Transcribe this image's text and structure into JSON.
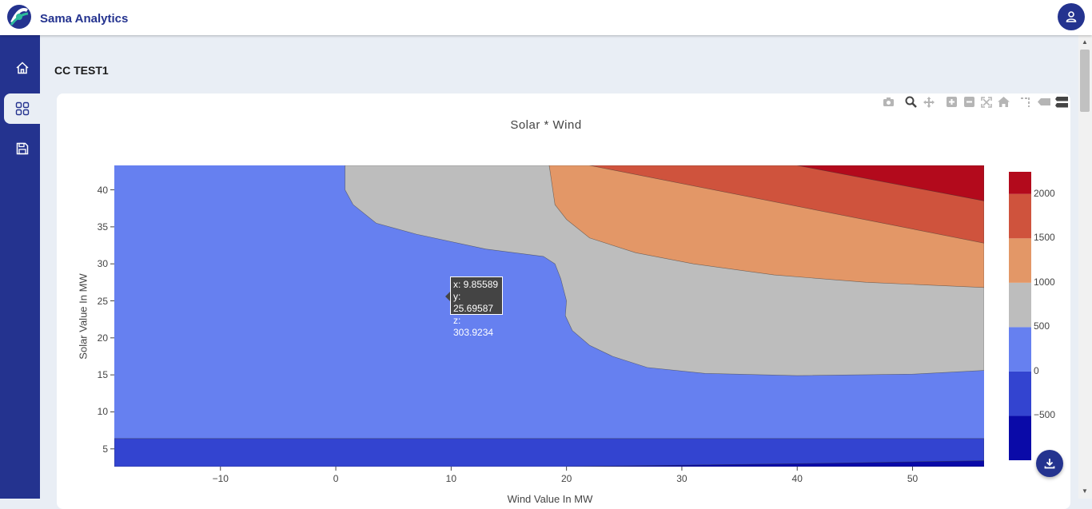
{
  "app": {
    "name": "Sama Analytics"
  },
  "sidebar": {
    "items": [
      {
        "name": "home",
        "icon": "home-icon"
      },
      {
        "name": "dashboards",
        "icon": "grid-icon",
        "active": true
      },
      {
        "name": "saved",
        "icon": "save-icon"
      }
    ]
  },
  "page": {
    "title": "CC TEST1"
  },
  "modebar": {
    "icons": [
      "camera-icon",
      "zoom-icon",
      "pan-icon",
      "zoom-in-icon",
      "zoom-out-icon",
      "autoscale-icon",
      "reset-axes-icon",
      "spike-lines-icon",
      "hover-closest-icon",
      "hover-compare-icon"
    ]
  },
  "tooltip": {
    "x": "x: 9.85589",
    "y": "y: 25.69587",
    "z": "z: 303.9234"
  },
  "colors": {
    "brand": "#24338f",
    "background": "#e9eef5"
  },
  "chart_data": {
    "type": "contour",
    "title": "Solar * Wind",
    "xlabel": "Wind Value In MW",
    "ylabel": "Solar Value In MW",
    "xlim": [
      -19.2,
      56.2
    ],
    "ylim": [
      2.6,
      43.3
    ],
    "xticks": [
      -10,
      0,
      10,
      20,
      30,
      40,
      50
    ],
    "yticks": [
      5,
      10,
      15,
      20,
      25,
      30,
      35,
      40
    ],
    "colorbar": {
      "ticks": [
        -500,
        0,
        500,
        1000,
        1500,
        2000
      ],
      "range": [
        -1000,
        2250
      ],
      "levels": [
        {
          "from": -1000,
          "to": -500,
          "color": "#0a0aa8"
        },
        {
          "from": -500,
          "to": 0,
          "color": "#3344d0"
        },
        {
          "from": 0,
          "to": 500,
          "color": "#6680f0"
        },
        {
          "from": 500,
          "to": 1000,
          "color": "#bdbdbd"
        },
        {
          "from": 1000,
          "to": 1500,
          "color": "#e39767"
        },
        {
          "from": 1500,
          "to": 2000,
          "color": "#cf533d"
        },
        {
          "from": 2000,
          "to": 2250,
          "color": "#b30a1c"
        }
      ]
    },
    "contours": [
      {
        "level": "-500 to 0",
        "color": "#3344d0",
        "points": [
          [
            -19.2,
            6.4
          ],
          [
            56.2,
            6.4
          ],
          [
            56.2,
            2.6
          ],
          [
            -19.2,
            2.6
          ]
        ]
      },
      {
        "level": "-1000 to -500",
        "color": "#0a0aa8",
        "points": [
          [
            20,
            2.6
          ],
          [
            40,
            3.0
          ],
          [
            56.2,
            3.4
          ],
          [
            56.2,
            2.6
          ]
        ]
      },
      {
        "level": "500 to 1000",
        "color": "#bdbdbd",
        "points": [
          [
            0.8,
            43.3
          ],
          [
            0.8,
            40
          ],
          [
            1.5,
            38
          ],
          [
            3.5,
            35.5
          ],
          [
            7,
            34
          ],
          [
            13,
            32
          ],
          [
            18,
            31
          ],
          [
            19,
            30
          ],
          [
            19.5,
            28
          ],
          [
            20,
            25
          ],
          [
            19.9,
            23
          ],
          [
            20.5,
            21
          ],
          [
            22,
            19
          ],
          [
            24,
            17.5
          ],
          [
            27,
            16
          ],
          [
            32,
            15.2
          ],
          [
            40,
            14.9
          ],
          [
            50,
            15.1
          ],
          [
            56.2,
            15.6
          ],
          [
            56.2,
            43.3
          ]
        ]
      },
      {
        "level": "1000 to 1500",
        "color": "#e39767",
        "points": [
          [
            18.5,
            43.3
          ],
          [
            19,
            38
          ],
          [
            20,
            36
          ],
          [
            22,
            33.5
          ],
          [
            26,
            31.5
          ],
          [
            31,
            30
          ],
          [
            38,
            28.5
          ],
          [
            46,
            27.5
          ],
          [
            56.2,
            26.8
          ],
          [
            56.2,
            43.3
          ]
        ]
      },
      {
        "level": "1500 to 2000",
        "color": "#cf533d",
        "points": [
          [
            22,
            43.3
          ],
          [
            56.2,
            32.8
          ],
          [
            56.2,
            43.3
          ]
        ]
      },
      {
        "level": "2000 to 2250",
        "color": "#b30a1c",
        "points": [
          [
            40,
            43.3
          ],
          [
            56.2,
            38.5
          ],
          [
            56.2,
            43.3
          ]
        ]
      }
    ]
  }
}
